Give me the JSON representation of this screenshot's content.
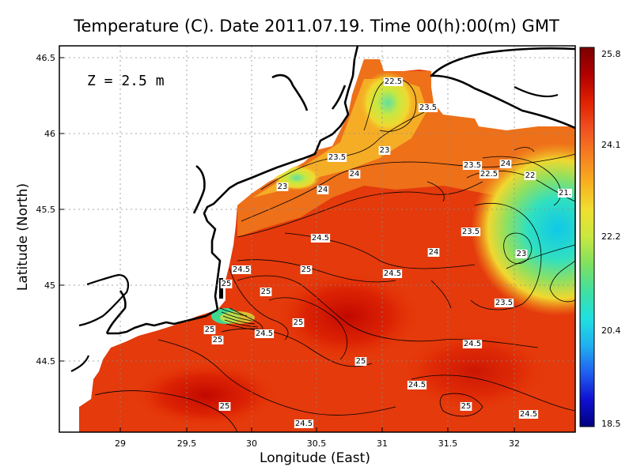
{
  "title": "Temperature (C). Date 2011.07.19. Time 00(h):00(m) GMT",
  "depth_label": "Z = 2.5 m",
  "x_axis": {
    "label": "Longitude (East)",
    "ticks": [
      "29",
      "29.5",
      "30",
      "30.5",
      "31",
      "31.5",
      "32"
    ]
  },
  "y_axis": {
    "label": "Latitude (North)",
    "ticks": [
      "46.5",
      "46",
      "45.5",
      "45",
      "44.5"
    ]
  },
  "colorbar": {
    "ticks": [
      "25.8",
      "24.1",
      "22.2",
      "20.4",
      "18.5"
    ],
    "colors": [
      "#7a0000",
      "#b00000",
      "#e02000",
      "#f05020",
      "#f58020",
      "#f8b020",
      "#f0e030",
      "#c8e840",
      "#80e060",
      "#40e0a0",
      "#20e0e0",
      "#20b0f0",
      "#2060f0",
      "#1010d0",
      "#000080"
    ]
  },
  "contour_labels": [
    {
      "text": "22.5"
    },
    {
      "text": "23.5"
    },
    {
      "text": "23"
    },
    {
      "text": "23.5"
    },
    {
      "text": "23"
    },
    {
      "text": "24"
    },
    {
      "text": "24"
    },
    {
      "text": "23.5"
    },
    {
      "text": "22.5"
    },
    {
      "text": "24"
    },
    {
      "text": "22"
    },
    {
      "text": "21."
    },
    {
      "text": "24.5"
    },
    {
      "text": "23.5"
    },
    {
      "text": "24"
    },
    {
      "text": "23"
    },
    {
      "text": "24.5"
    },
    {
      "text": "25"
    },
    {
      "text": "24.5"
    },
    {
      "text": "25"
    },
    {
      "text": "25"
    },
    {
      "text": "23.5"
    },
    {
      "text": "25"
    },
    {
      "text": "25"
    },
    {
      "text": "25"
    },
    {
      "text": "24.5"
    },
    {
      "text": "24.5"
    },
    {
      "text": "25"
    },
    {
      "text": "24.5"
    },
    {
      "text": "25"
    },
    {
      "text": "24.5"
    },
    {
      "text": "25"
    },
    {
      "text": "24.5"
    }
  ]
}
